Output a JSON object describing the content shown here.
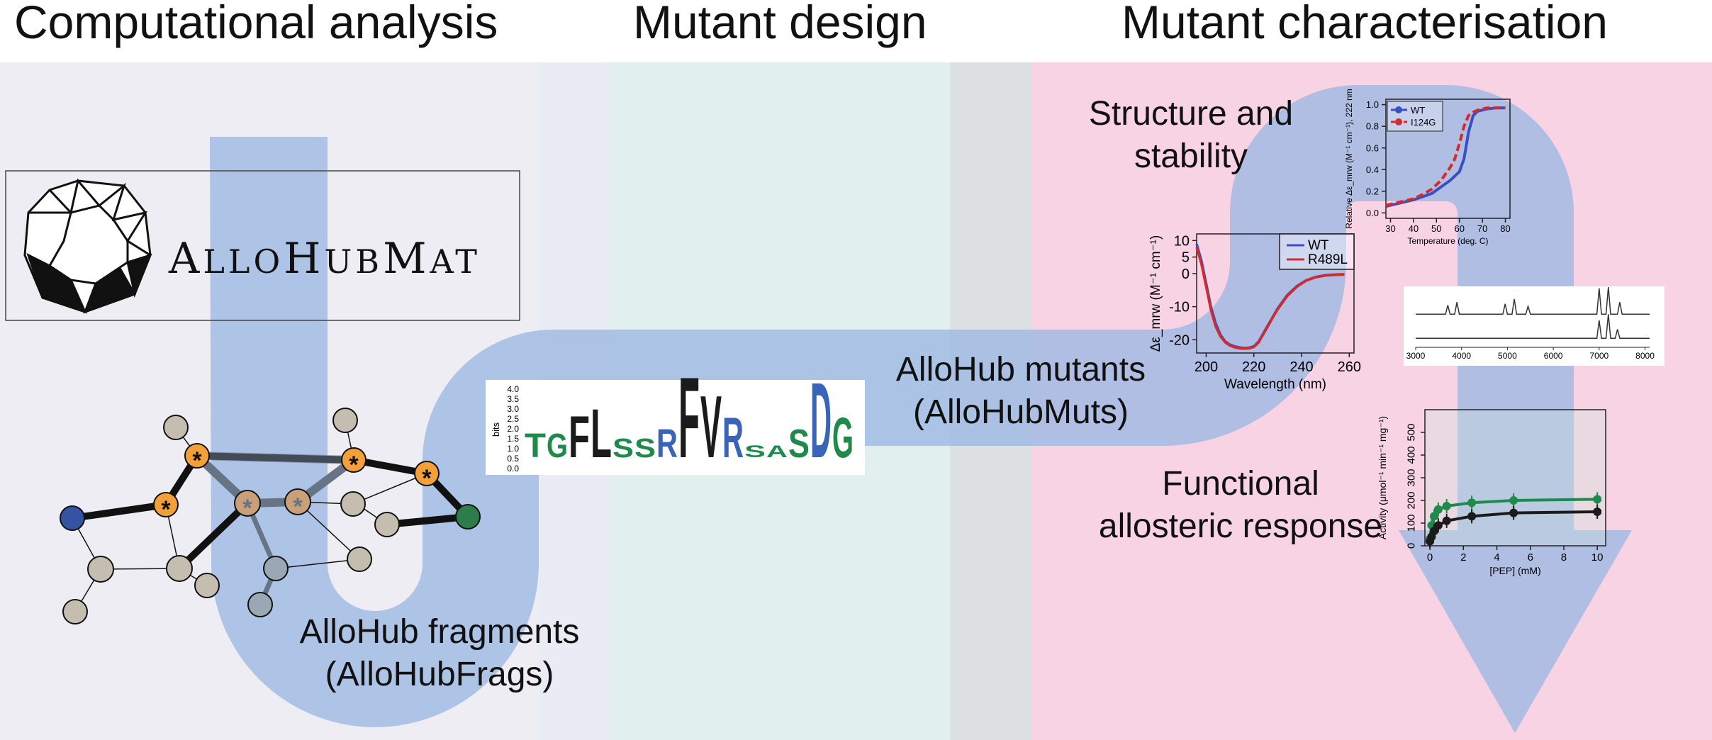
{
  "headers": {
    "computational": "Computational analysis",
    "design": "Mutant design",
    "characterisation": "Mutant characterisation"
  },
  "logo": {
    "first_cap": "A",
    "rest1": "LLO",
    "cap2": "H",
    "rest2": "UB",
    "cap3": "M",
    "rest3": "AT"
  },
  "labels": {
    "frags_line1": "AlloHub fragments",
    "frags_line2": "(AlloHubFrags)",
    "muts_line1": "AlloHub mutants",
    "muts_line2": "(AlloHubMuts)",
    "structure_line1": "Structure and",
    "structure_line2": "stability",
    "functional_line1": "Functional",
    "functional_line2": "allosteric response"
  },
  "logo_plot": {
    "ylabel": "bits",
    "yticks": [
      "4.0",
      "3.5",
      "3.0",
      "2.5",
      "2.0",
      "1.5",
      "1.0",
      "0.5",
      "0.0"
    ],
    "letters": [
      "T",
      "G",
      "F",
      "L",
      "S",
      "S",
      "R",
      "F",
      "V",
      "R",
      "S",
      "A",
      "S",
      "D",
      "G"
    ],
    "letter_colors": {
      "green": "#1f8a4c",
      "blue": "#3a64b8",
      "black": "#1b1b1b"
    }
  },
  "chart_data": [
    {
      "type": "line",
      "title": "",
      "xlabel": "Wavelength (nm)",
      "ylabel": "Δε_mrw (M⁻¹ cm⁻¹)",
      "xlim": [
        196,
        262
      ],
      "ylim": [
        -24,
        12
      ],
      "xticks": [
        "200",
        "220",
        "240",
        "260"
      ],
      "yticks": [
        "10",
        "5",
        "0",
        "-10",
        "-20"
      ],
      "legend": "top-right",
      "series": [
        {
          "name": "WT",
          "color": "#3a4fc2",
          "x": [
            196,
            198,
            200,
            202,
            204,
            206,
            208,
            210,
            212,
            214,
            216,
            218,
            220,
            222,
            224,
            226,
            228,
            230,
            234,
            238,
            242,
            246,
            250,
            254,
            258
          ],
          "y": [
            9,
            4,
            -3,
            -10,
            -15,
            -18.5,
            -20.5,
            -21.5,
            -22,
            -22.3,
            -22.5,
            -22.4,
            -22,
            -20.5,
            -18,
            -15.5,
            -13,
            -10.5,
            -6.5,
            -3.8,
            -2,
            -1,
            -0.5,
            -0.3,
            -0.2
          ]
        },
        {
          "name": "R489L",
          "color": "#d42a2a",
          "x": [
            196,
            198,
            200,
            202,
            204,
            206,
            208,
            210,
            212,
            214,
            216,
            218,
            220,
            222,
            224,
            226,
            228,
            230,
            234,
            238,
            242,
            246,
            250,
            254,
            258
          ],
          "y": [
            8,
            3,
            -4,
            -11,
            -16,
            -19,
            -20.8,
            -21.8,
            -22.3,
            -22.6,
            -22.7,
            -22.6,
            -22.2,
            -20.8,
            -18.3,
            -15.8,
            -13.2,
            -10.8,
            -6.8,
            -4,
            -2.1,
            -1.1,
            -0.6,
            -0.4,
            -0.3
          ]
        }
      ]
    },
    {
      "type": "line",
      "title": "",
      "xlabel": "Temperature (deg. C)",
      "ylabel": "Relative Δε_mrw (M⁻¹ cm⁻¹), 222 nm",
      "xlim": [
        28,
        82
      ],
      "ylim": [
        -0.05,
        1.05
      ],
      "xticks": [
        "30",
        "40",
        "50",
        "60",
        "70",
        "80"
      ],
      "yticks": [
        "0.0",
        "0.2",
        "0.4",
        "0.6",
        "0.8",
        "1.0"
      ],
      "legend": "top-left",
      "series": [
        {
          "name": "WT",
          "color": "#3a4fc2",
          "x": [
            28,
            32,
            36,
            40,
            44,
            48,
            52,
            56,
            60,
            62,
            64,
            66,
            68,
            70,
            72,
            76,
            80
          ],
          "y": [
            0.06,
            0.08,
            0.1,
            0.12,
            0.15,
            0.18,
            0.24,
            0.3,
            0.38,
            0.5,
            0.75,
            0.9,
            0.94,
            0.95,
            0.96,
            0.97,
            0.97
          ]
        },
        {
          "name": "I124G",
          "color": "#d42a2a",
          "x": [
            28,
            32,
            36,
            40,
            44,
            48,
            52,
            56,
            58,
            60,
            62,
            64,
            66,
            68,
            70,
            72,
            76,
            80
          ],
          "y": [
            0.07,
            0.09,
            0.11,
            0.13,
            0.17,
            0.22,
            0.3,
            0.42,
            0.5,
            0.64,
            0.8,
            0.9,
            0.93,
            0.95,
            0.96,
            0.97,
            0.97,
            0.97
          ]
        }
      ]
    },
    {
      "type": "line",
      "title": "",
      "xlabel": "",
      "ylabel": "",
      "xlim": [
        3000,
        8100
      ],
      "ylim": [
        0,
        1
      ],
      "xticks": [
        "3000",
        "4000",
        "5000",
        "6000",
        "7000",
        "8000"
      ],
      "legend": "none",
      "series": [
        {
          "name": "",
          "color": "#333333",
          "x": [
            3000,
            3650,
            3700,
            3750,
            3850,
            3900,
            3950,
            4200,
            4900,
            4950,
            5000,
            5100,
            5150,
            5200,
            5400,
            5450,
            5500,
            6950,
            7000,
            7050,
            7150,
            7200,
            7250,
            7400,
            7450,
            7500,
            8100
          ],
          "y": [
            0.55,
            0.55,
            0.7,
            0.55,
            0.55,
            0.75,
            0.55,
            0.55,
            0.55,
            0.72,
            0.55,
            0.55,
            0.8,
            0.55,
            0.55,
            0.68,
            0.55,
            0.55,
            0.98,
            0.55,
            0.55,
            1.0,
            0.55,
            0.55,
            0.75,
            0.55,
            0.55
          ]
        },
        {
          "name": "",
          "color": "#333333",
          "x": [
            3000,
            6950,
            7000,
            7050,
            7150,
            7200,
            7250,
            7350,
            7400,
            7450,
            8100
          ],
          "y": [
            0.15,
            0.15,
            0.45,
            0.15,
            0.15,
            0.55,
            0.15,
            0.15,
            0.3,
            0.15,
            0.15
          ]
        }
      ]
    },
    {
      "type": "line",
      "title": "",
      "xlabel": "[PEP] (mM)",
      "ylabel": "Activity (μmol⁻¹ min⁻¹ mg⁻¹)",
      "xlim": [
        -0.3,
        10.5
      ],
      "ylim": [
        0,
        600
      ],
      "xticks": [
        "0",
        "2",
        "4",
        "6",
        "8",
        "10"
      ],
      "yticks": [
        "0",
        "100",
        "200",
        "300",
        "400",
        "500"
      ],
      "legend": "none",
      "series": [
        {
          "name": "",
          "color": "#1f8a4c",
          "x": [
            0,
            0.1,
            0.25,
            0.5,
            1,
            2.5,
            5,
            10
          ],
          "y": [
            30,
            90,
            130,
            160,
            175,
            190,
            200,
            205
          ]
        },
        {
          "name": "",
          "color": "#1b1b1b",
          "x": [
            0,
            0.1,
            0.25,
            0.5,
            1,
            2.5,
            5,
            10
          ],
          "y": [
            20,
            40,
            65,
            90,
            110,
            130,
            145,
            150
          ]
        }
      ]
    }
  ]
}
